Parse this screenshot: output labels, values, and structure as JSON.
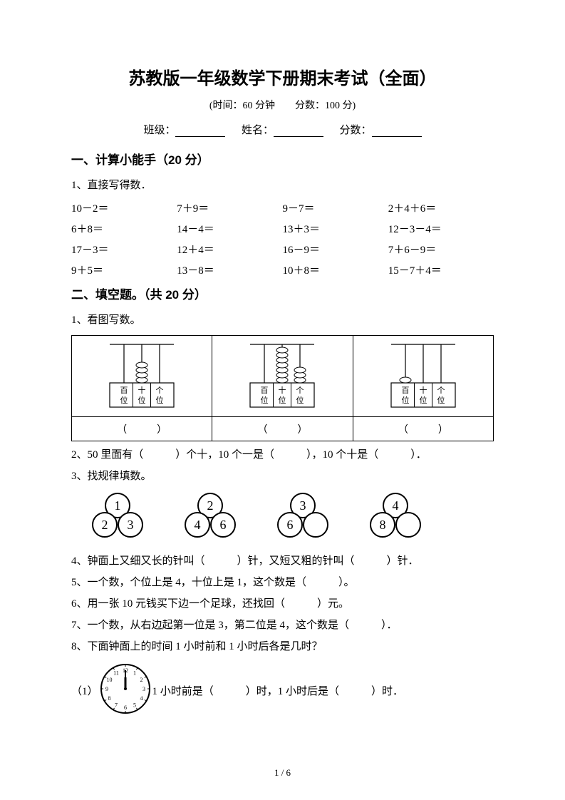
{
  "title": "苏教版一年级数学下册期末考试（全面）",
  "subtitle": "(时间：60 分钟　　分数：100 分)",
  "info": {
    "class": "班级：",
    "name": "姓名：",
    "score": "分数："
  },
  "section1": {
    "header": "一、计算小能手（20 分）",
    "q1_label": "1、直接写得数．",
    "rows": [
      [
        "10－2＝",
        "7＋9＝",
        "9－7＝",
        "2＋4＋6＝"
      ],
      [
        "6＋8＝",
        "14－4＝",
        "13＋3＝",
        "12－3－4＝"
      ],
      [
        "17－3＝",
        "12＋4＝",
        "16－9＝",
        "7＋6－9＝"
      ],
      [
        "9＋5＝",
        "13－8＝",
        "10＋8＝",
        "15－7＋4＝"
      ]
    ]
  },
  "section2": {
    "header": "二、填空题。（共 20 分）",
    "q1_label": "1、看图写数。",
    "place_labels": {
      "h": "百",
      "t": "十",
      "o": "个",
      "w": "位"
    },
    "abacus": [
      {
        "beads": [
          0,
          4,
          0
        ]
      },
      {
        "beads": [
          0,
          7,
          3
        ]
      },
      {
        "beads": [
          1,
          0,
          0
        ]
      }
    ],
    "answer_placeholder": "（　　　）",
    "q2": "2、50 里面有（　　　）个十，10 个一是（　　　），10 个十是（　　　）．",
    "q3_label": "3、找规律填数。",
    "patterns": [
      [
        1,
        2,
        3
      ],
      [
        2,
        4,
        6
      ],
      [
        3,
        6,
        null
      ],
      [
        4,
        8,
        null
      ]
    ],
    "q4": "4、钟面上又细又长的针叫（　　　）针，又短又粗的针叫（　　　）针．",
    "q5": "5、一个数，个位上是 4，十位上是 1，这个数是（　　　）。",
    "q6": "6、用一张 10 元钱买下边一个足球，还找回（　　　）元。",
    "q7": "7、一个数，从右边起第一位是 3，第二位是 4，这个数是（　　　）．",
    "q8_label": "8、下面钟面上的时间 1 小时前和 1 小时后各是几时？",
    "q8_item": "（1）",
    "q8_text": "1 小时前是（　　　）时，1 小时后是（　　　）时．",
    "clock": {
      "hour": 12,
      "minute": 0
    }
  },
  "page_num": "1 / 6",
  "colors": {
    "text": "#000000",
    "bg": "#ffffff",
    "border": "#000000"
  }
}
